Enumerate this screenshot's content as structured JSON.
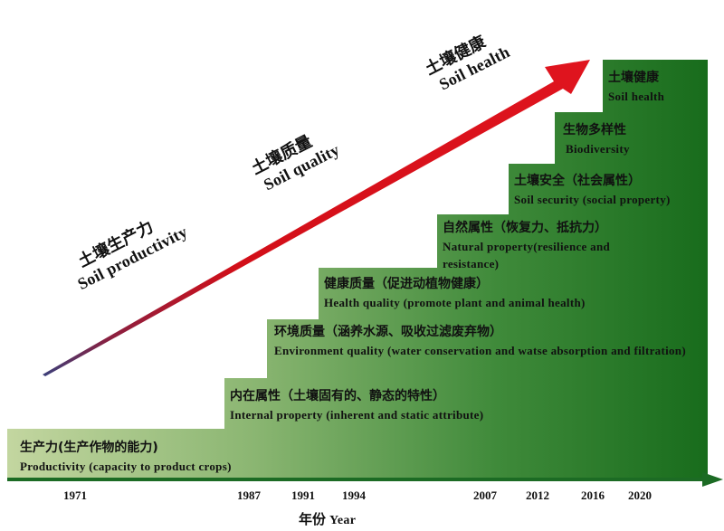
{
  "diagram": {
    "arrow_labels": [
      {
        "zh": "土壤生产力",
        "en": "Soil productivity"
      },
      {
        "zh": "土壤质量",
        "en": "Soil quality"
      },
      {
        "zh": "土壤健康",
        "en": "Soil health"
      }
    ],
    "steps": [
      {
        "zh": "生产力(生产作物的能力)",
        "en": "Productivity (capacity to product crops)"
      },
      {
        "zh": "内在属性（土壤固有的、静态的特性）",
        "en": "Internal property (inherent and static attribute)"
      },
      {
        "zh": "环境质量（涵养水源、吸收过滤废弃物）",
        "en": "Environment quality (water conservation and watse absorption and filtration)"
      },
      {
        "zh": "健康质量（促进动植物健康）",
        "en": "Health quality (promote plant and animal health)"
      },
      {
        "zh": "自然属性（恢复力、抵抗力）",
        "en": "Natural property(resilience and resistance)"
      },
      {
        "zh": "土壤安全（社会属性）",
        "en": "Soil security (social property)"
      },
      {
        "zh": "生物多样性",
        "en": "Biodiversity"
      },
      {
        "zh": "土壤健康",
        "en": "Soil health"
      }
    ],
    "years": [
      "1971",
      "1987",
      "1991",
      "1994",
      "2007",
      "2012",
      "2016",
      "2020"
    ],
    "axis_title": {
      "zh": "年份",
      "en": "Year"
    },
    "colors": {
      "arrow": "#d9101a",
      "step_light": "#b8cf92",
      "step_dark": "#1a6d1e",
      "axis": "#1c6b24"
    }
  }
}
